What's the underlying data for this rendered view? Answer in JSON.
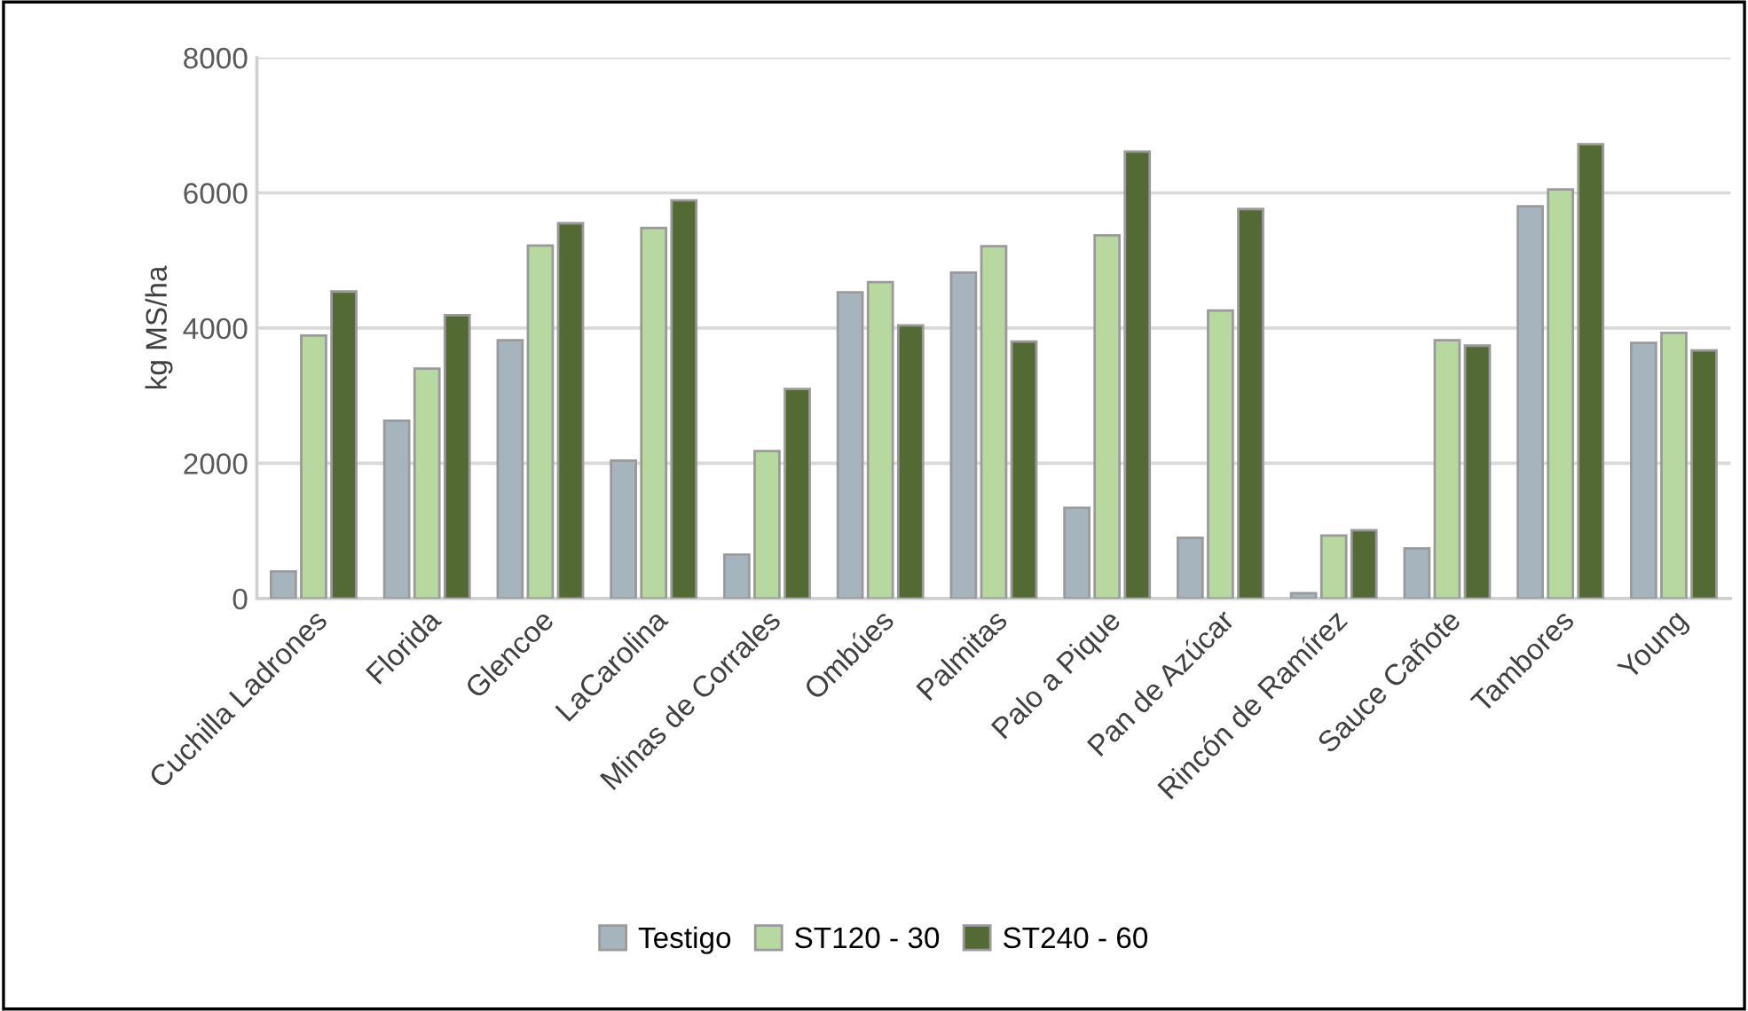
{
  "chart_data": {
    "type": "bar",
    "ylabel": "kg MS/ha",
    "categories": [
      "Cuchilla Ladrones",
      "Florida",
      "Glencoe",
      "LaCarolina",
      "Minas de Corrales",
      "Ombúes",
      "Palmitas",
      "Palo a Pique",
      "Pan de Azúcar",
      "Rincón de Ramírez",
      "Sauce Cañote",
      "Tambores",
      "Young"
    ],
    "series": [
      {
        "name": "Testigo",
        "color": "#a6b4bd",
        "values": [
          400,
          2630,
          3820,
          2040,
          650,
          4530,
          4820,
          1340,
          900,
          80,
          740,
          5800,
          3780
        ]
      },
      {
        "name": "ST120 - 30",
        "color": "#b7d99f",
        "values": [
          3890,
          3400,
          5220,
          5480,
          2180,
          4680,
          5210,
          5370,
          4260,
          930,
          3820,
          6050,
          3930
        ]
      },
      {
        "name": "ST240 - 60",
        "color": "#536a34",
        "values": [
          4540,
          4190,
          5550,
          5890,
          3100,
          4040,
          3800,
          6610,
          5760,
          1010,
          3740,
          6720,
          3670
        ]
      }
    ],
    "ylim": [
      0,
      8000
    ],
    "yticks": [
      0,
      2000,
      4000,
      6000,
      8000
    ],
    "grid": "y",
    "legend": "bottom"
  }
}
